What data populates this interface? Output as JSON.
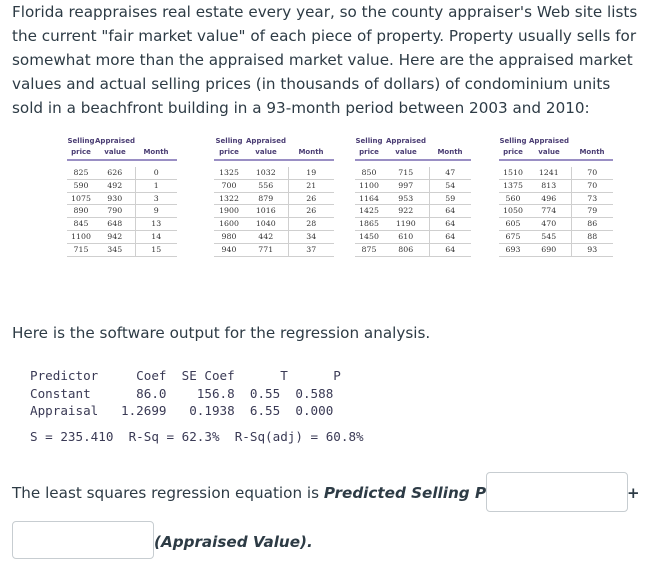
{
  "intro_text": "Florida reappraises real estate every year, so the county appraiser's Web site lists the current \"fair market value\" of each piece of property. Property usually sells for somewhat more than the appraised market value. Here are the appraised market values and actual selling prices (in thousands of dollars) of condominium units sold in a beachfront building in a 93-month period between 2003 and 2010:",
  "table": {
    "headers_line1": [
      "Selling",
      "Appraised",
      ""
    ],
    "headers_line2": [
      "price",
      "value",
      "Month"
    ],
    "blocks": [
      [
        [
          "825",
          "626",
          "0"
        ],
        [
          "590",
          "492",
          "1"
        ],
        [
          "1075",
          "930",
          "3"
        ],
        [
          "890",
          "790",
          "9"
        ],
        [
          "845",
          "648",
          "13"
        ],
        [
          "1100",
          "942",
          "14"
        ],
        [
          "715",
          "345",
          "15"
        ]
      ],
      [
        [
          "1325",
          "1032",
          "19"
        ],
        [
          "700",
          "556",
          "21"
        ],
        [
          "1322",
          "879",
          "26"
        ],
        [
          "1900",
          "1016",
          "26"
        ],
        [
          "1600",
          "1040",
          "28"
        ],
        [
          "980",
          "442",
          "34"
        ],
        [
          "940",
          "771",
          "37"
        ]
      ],
      [
        [
          "850",
          "715",
          "47"
        ],
        [
          "1100",
          "997",
          "54"
        ],
        [
          "1164",
          "953",
          "59"
        ],
        [
          "1425",
          "922",
          "64"
        ],
        [
          "1865",
          "1190",
          "64"
        ],
        [
          "1450",
          "610",
          "64"
        ],
        [
          "875",
          "806",
          "64"
        ]
      ],
      [
        [
          "1510",
          "1241",
          "70"
        ],
        [
          "1375",
          "813",
          "70"
        ],
        [
          "560",
          "496",
          "73"
        ],
        [
          "1050",
          "774",
          "79"
        ],
        [
          "605",
          "470",
          "86"
        ],
        [
          "675",
          "545",
          "88"
        ],
        [
          "693",
          "690",
          "93"
        ]
      ]
    ]
  },
  "mid_text": "Here is the software output for the regression analysis.",
  "output": {
    "header": "Predictor     Coef  SE Coef      T      P",
    "constant": "Constant      86.0    156.8  0.55  0.588",
    "appraisal": "Appraisal   1.2699   0.1938  6.55  0.000",
    "summary": "S = 235.410  R-Sq = 62.3%  R-Sq(adj) = 60.8%"
  },
  "answer": {
    "prefix": "The least squares regression equation is ",
    "bold_label": "Predicted Selling Price =",
    "plus": "+",
    "suffix": "(Appraised Value).",
    "box1_value": "",
    "box2_value": ""
  }
}
